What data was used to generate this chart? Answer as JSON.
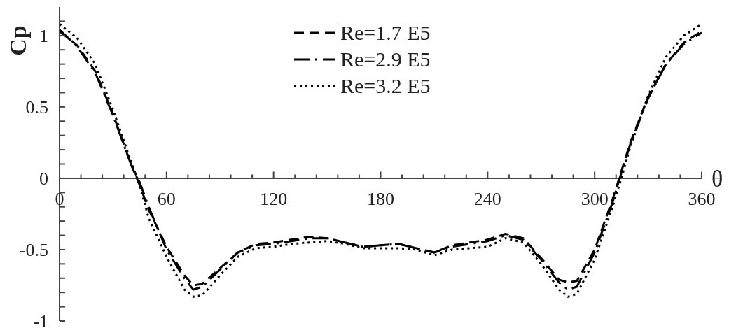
{
  "chart_data": {
    "type": "line",
    "xlabel": "θ",
    "ylabel": "Cp",
    "legend": "top",
    "marker": "none",
    "grid": false,
    "x": [
      0,
      10,
      20,
      30,
      40,
      45,
      50,
      60,
      70,
      75,
      80,
      90,
      100,
      110,
      120,
      130,
      140,
      150,
      160,
      170,
      180,
      190,
      200,
      210,
      220,
      230,
      240,
      250,
      260,
      270,
      280,
      285,
      290,
      300,
      310,
      315,
      320,
      330,
      340,
      350,
      360
    ],
    "xlim": [
      0,
      360
    ],
    "xticks": [
      0,
      {
        "value": 12,
        "label": null
      },
      {
        "value": 24,
        "label": null
      },
      {
        "value": 36,
        "label": null
      },
      {
        "value": 48,
        "label": null
      },
      60,
      {
        "value": 72,
        "label": null
      },
      {
        "value": 84,
        "label": null
      },
      {
        "value": 96,
        "label": null
      },
      {
        "value": 108,
        "label": null
      },
      120,
      {
        "value": 132,
        "label": null
      },
      {
        "value": 144,
        "label": null
      },
      {
        "value": 156,
        "label": null
      },
      {
        "value": 168,
        "label": null
      },
      180,
      {
        "value": 192,
        "label": null
      },
      {
        "value": 204,
        "label": null
      },
      {
        "value": 216,
        "label": null
      },
      {
        "value": 228,
        "label": null
      },
      240,
      {
        "value": 252,
        "label": null
      },
      {
        "value": 264,
        "label": null
      },
      {
        "value": 276,
        "label": null
      },
      {
        "value": 288,
        "label": null
      },
      300,
      {
        "value": 312,
        "label": null
      },
      {
        "value": 324,
        "label": null
      },
      {
        "value": 336,
        "label": null
      },
      {
        "value": 348,
        "label": null
      },
      360
    ],
    "ylim": [
      -1,
      1.2
    ],
    "yticks": [
      {
        "value": -1,
        "label": "-1"
      },
      {
        "value": -0.9,
        "label": null
      },
      {
        "value": -0.8,
        "label": null
      },
      {
        "value": -0.7,
        "label": null
      },
      {
        "value": -0.6,
        "label": null
      },
      {
        "value": -0.5,
        "label": "-0.5"
      },
      {
        "value": -0.4,
        "label": null
      },
      {
        "value": -0.3,
        "label": null
      },
      {
        "value": -0.2,
        "label": null
      },
      {
        "value": -0.1,
        "label": null
      },
      {
        "value": 0,
        "label": "0"
      },
      {
        "value": 0.1,
        "label": null
      },
      {
        "value": 0.2,
        "label": null
      },
      {
        "value": 0.3,
        "label": null
      },
      {
        "value": 0.4,
        "label": null
      },
      {
        "value": 0.5,
        "label": "0.5"
      },
      {
        "value": 0.6,
        "label": null
      },
      {
        "value": 0.7,
        "label": null
      },
      {
        "value": 0.8,
        "label": null
      },
      {
        "value": 0.9,
        "label": null
      },
      {
        "value": 1,
        "label": "1"
      },
      {
        "value": 1.1,
        "label": null
      }
    ],
    "series": [
      {
        "name": "Re=1.7 E5",
        "color": "#000000",
        "line_style": "dashed",
        "values": [
          1.03,
          0.93,
          0.75,
          0.45,
          0.1,
          -0.05,
          -0.22,
          -0.48,
          -0.68,
          -0.75,
          -0.74,
          -0.63,
          -0.52,
          -0.46,
          -0.45,
          -0.43,
          -0.41,
          -0.42,
          -0.45,
          -0.48,
          -0.47,
          -0.46,
          -0.49,
          -0.52,
          -0.47,
          -0.45,
          -0.43,
          -0.39,
          -0.42,
          -0.56,
          -0.71,
          -0.73,
          -0.72,
          -0.5,
          -0.15,
          0.05,
          0.25,
          0.57,
          0.8,
          0.95,
          1.03
        ]
      },
      {
        "name": "Re=2.9 E5",
        "color": "#000000",
        "line_style": "dashdot",
        "values": [
          1.04,
          0.92,
          0.74,
          0.44,
          0.1,
          -0.03,
          -0.2,
          -0.5,
          -0.7,
          -0.78,
          -0.76,
          -0.64,
          -0.52,
          -0.47,
          -0.46,
          -0.44,
          -0.42,
          -0.42,
          -0.45,
          -0.48,
          -0.47,
          -0.46,
          -0.49,
          -0.52,
          -0.48,
          -0.46,
          -0.44,
          -0.4,
          -0.43,
          -0.57,
          -0.73,
          -0.78,
          -0.76,
          -0.52,
          -0.17,
          0.04,
          0.24,
          0.56,
          0.8,
          0.94,
          1.02
        ]
      },
      {
        "name": "Re=3.2 E5",
        "color": "#000000",
        "line_style": "dotted",
        "values": [
          1.08,
          0.98,
          0.8,
          0.48,
          0.12,
          -0.05,
          -0.28,
          -0.55,
          -0.78,
          -0.83,
          -0.82,
          -0.68,
          -0.55,
          -0.49,
          -0.48,
          -0.46,
          -0.45,
          -0.44,
          -0.46,
          -0.49,
          -0.49,
          -0.49,
          -0.5,
          -0.54,
          -0.5,
          -0.49,
          -0.48,
          -0.42,
          -0.45,
          -0.6,
          -0.78,
          -0.83,
          -0.81,
          -0.57,
          -0.2,
          0,
          0.22,
          0.58,
          0.85,
          1.0,
          1.08
        ]
      }
    ]
  }
}
